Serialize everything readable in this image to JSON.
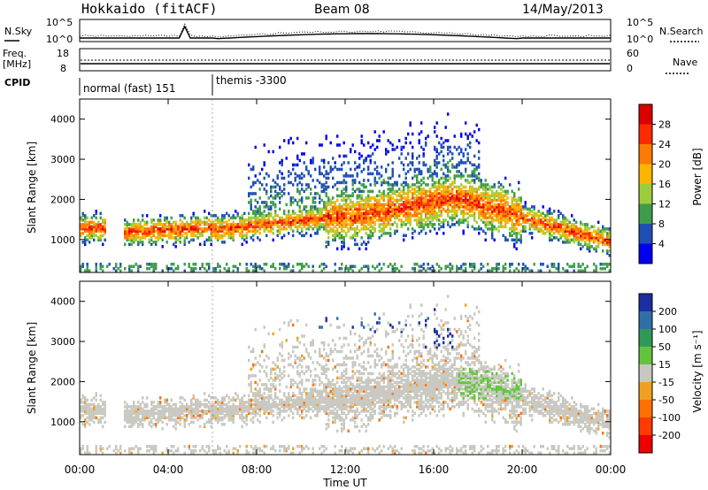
{
  "header": {
    "station": "Hokkaido (fitACF)",
    "beam": "Beam 08",
    "date": "14/May/2013"
  },
  "panels": {
    "nsky": {
      "label": "N.Sky",
      "left_ticks": [
        "10^5",
        "10^0"
      ],
      "right_label": "N.Search",
      "right_ticks": [
        "10^5",
        "10^0"
      ]
    },
    "freq": {
      "label_line1": "Freq.",
      "label_line2": "[MHz]",
      "left_ticks": [
        "18",
        "8"
      ],
      "right_label": "Nave",
      "right_ticks": [
        "60",
        "0"
      ]
    },
    "cpid": {
      "label": "CPID",
      "segments": [
        {
          "text": "normal (fast) 151",
          "start_hour": 0
        },
        {
          "text": "themis -3300",
          "start_hour": 6
        }
      ]
    }
  },
  "chart_data": [
    {
      "type": "heatmap",
      "name": "power",
      "xlabel": "",
      "ylabel": "Slant Range [km]",
      "xlim_hours": [
        0,
        24
      ],
      "ylim": [
        180,
        4500
      ],
      "yticks": [
        1000,
        2000,
        3000,
        4000
      ],
      "colorbar": {
        "label": "Power [dB]",
        "ticks": [
          "28",
          "24",
          "20",
          "16",
          "12",
          "8",
          "4"
        ],
        "colors": [
          "#d90000",
          "#ff2a00",
          "#ff7a00",
          "#ffb400",
          "#9ccd3c",
          "#3f9c4a",
          "#1f4fb4",
          "#0000ee"
        ]
      }
    },
    {
      "type": "heatmap",
      "name": "velocity",
      "xlabel": "Time UT",
      "ylabel": "Slant Range [km]",
      "xlim_hours": [
        0,
        24
      ],
      "ylim": [
        180,
        4500
      ],
      "yticks": [
        1000,
        2000,
        3000,
        4000
      ],
      "xticks": [
        "00:00",
        "04:00",
        "08:00",
        "12:00",
        "16:00",
        "20:00",
        "00:00"
      ],
      "colorbar": {
        "label": "Velocity [m s⁻¹]",
        "ticks": [
          "200",
          "100",
          "50",
          "15",
          "-15",
          "-50",
          "-100",
          "-200"
        ],
        "colors": [
          "#1b2fa0",
          "#2f6fa8",
          "#2e9a58",
          "#62c43b",
          "#c8c8c0",
          "#f0a020",
          "#ff7000",
          "#ff3a00",
          "#ee0000"
        ]
      }
    }
  ]
}
